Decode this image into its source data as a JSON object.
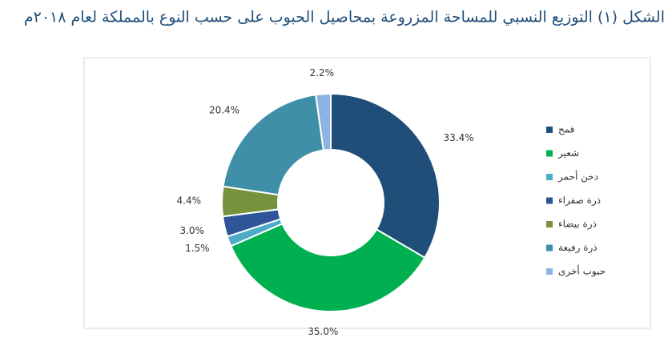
{
  "chart_data": {
    "type": "pie",
    "title": "الشكل (١) التوزيع النسبي للمساحة المزروعة بمحاصيل الحبوب على حسب النوع بالمملكة لعام ٢٠١٨م",
    "categories": [
      "قمح",
      "شعير",
      "دخن أحمر",
      "ذرة صفراء",
      "ذرة بيضاء",
      "ذرة رفيعة",
      "حبوب أخرى"
    ],
    "values": [
      33.4,
      35.0,
      1.5,
      3.0,
      4.4,
      20.4,
      2.2
    ],
    "value_labels": [
      "33.4%",
      "35.0%",
      "1.5%",
      "3.0%",
      "4.4%",
      "20.4%",
      "2.2%"
    ],
    "colors": [
      "#1f4e79",
      "#00b050",
      "#4bacc6",
      "#2e5597",
      "#76923c",
      "#3f8fa8",
      "#8db3e2"
    ]
  }
}
